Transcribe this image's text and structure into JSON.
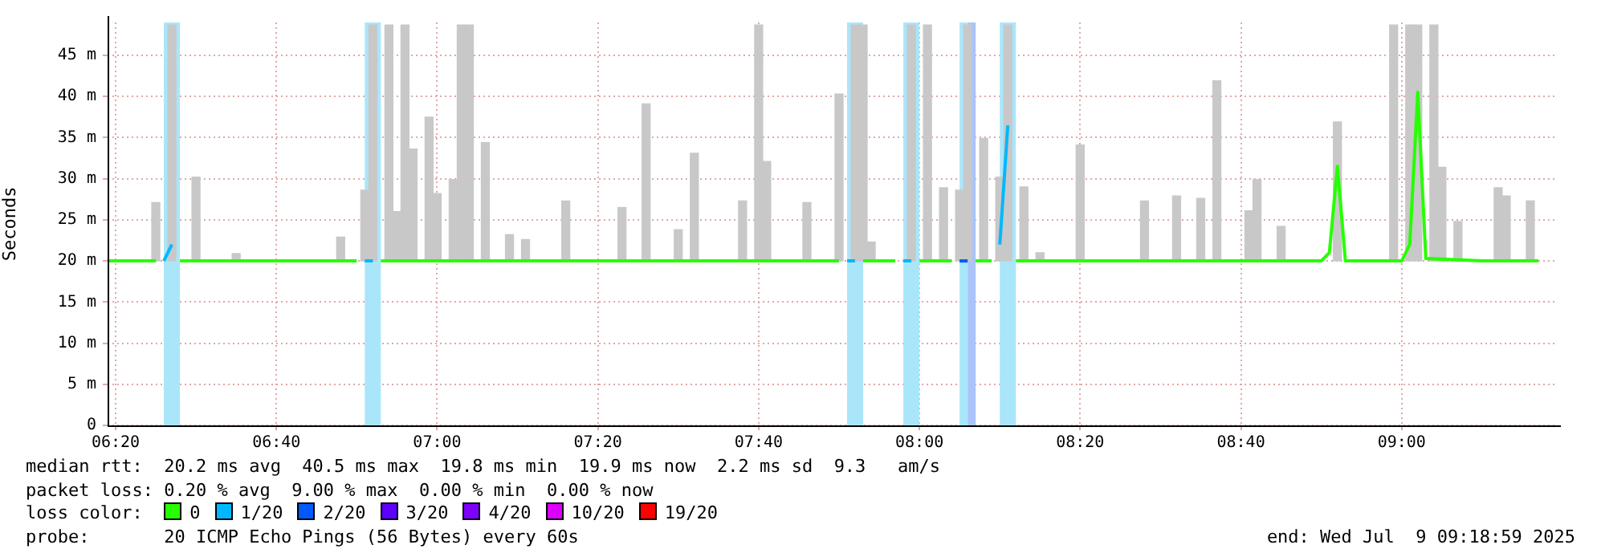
{
  "chart_data": {
    "type": "line",
    "ylabel": "Seconds",
    "legend_title": "loss color:",
    "legend": "bottom",
    "grid": true,
    "xlim": [
      6.3167,
      9.3167
    ],
    "xticks": [
      {
        "value": 6.3333,
        "label": "06:20"
      },
      {
        "value": 6.6667,
        "label": "06:40"
      },
      {
        "value": 7,
        "label": "07:00"
      },
      {
        "value": 7.3333,
        "label": "07:20"
      },
      {
        "value": 7.6667,
        "label": "07:40"
      },
      {
        "value": 8,
        "label": "08:00"
      },
      {
        "value": 8.3333,
        "label": "08:20"
      },
      {
        "value": 8.6667,
        "label": "08:40"
      },
      {
        "value": 9,
        "label": "09:00"
      }
    ],
    "ylim": [
      0,
      49
    ],
    "yticks": [
      0,
      {
        "value": 5,
        "label": "5 m"
      },
      {
        "value": 10,
        "label": "10 m"
      },
      {
        "value": 15,
        "label": "15 m"
      },
      {
        "value": 20,
        "label": "20 m"
      },
      {
        "value": 25,
        "label": "25 m"
      },
      {
        "value": 30,
        "label": "30 m"
      },
      {
        "value": 35,
        "label": "35 m"
      },
      {
        "value": 40,
        "label": "40 m"
      },
      {
        "value": 45,
        "label": "45 m"
      }
    ],
    "bands": [
      {
        "axis": "x",
        "from": 6.4333,
        "to": 6.4667,
        "color": "#aae6fa"
      },
      {
        "axis": "x",
        "from": 6.85,
        "to": 6.8833,
        "color": "#aae6fa"
      },
      {
        "axis": "x",
        "from": 7.85,
        "to": 7.8833,
        "color": "#aae6fa"
      },
      {
        "axis": "x",
        "from": 7.9667,
        "to": 8.0,
        "color": "#aae6fa"
      },
      {
        "axis": "x",
        "from": 8.0833,
        "to": 8.1,
        "color": "#aae6fa"
      },
      {
        "axis": "x",
        "from": 8.1,
        "to": 8.1167,
        "color": "#aac4fa"
      },
      {
        "axis": "x",
        "from": 8.1667,
        "to": 8.2,
        "color": "#aae6fa"
      }
    ],
    "series": [
      {
        "type": "bar",
        "color": "#c8c8c8",
        "x": [
          6.4167,
          6.45,
          6.5,
          6.5833,
          6.8,
          6.85,
          6.8667,
          6.9,
          6.9167,
          6.9333,
          6.95,
          6.9833,
          7.0,
          7.0333,
          7.05,
          7.0667,
          7.1,
          7.15,
          7.1833,
          7.2667,
          7.3833,
          7.4333,
          7.5,
          7.5333,
          7.6333,
          7.6667,
          7.6833,
          7.7667,
          7.8333,
          7.8667,
          7.8833,
          7.9,
          7.9833,
          8.0167,
          8.05,
          8.0833,
          8.1,
          8.1333,
          8.1667,
          8.1833,
          8.2167,
          8.25,
          8.3333,
          8.4667,
          8.5333,
          8.5833,
          8.6167,
          8.6833,
          8.7,
          8.75,
          8.8667,
          8.9833,
          9.0167,
          9.0333,
          9.0667,
          9.0833,
          9.1167,
          9.2,
          9.2167,
          9.2667
        ],
        "base": [
          20,
          20,
          20,
          20,
          20,
          20,
          20,
          20,
          20,
          20,
          20,
          20,
          20,
          20,
          20,
          20,
          20,
          20,
          20,
          20,
          20,
          20,
          20,
          20,
          20,
          20,
          20,
          20,
          20,
          20,
          20,
          20,
          20,
          20,
          20,
          20,
          20,
          20,
          20,
          20,
          20,
          20,
          20,
          20,
          20,
          20,
          20,
          20,
          20,
          20,
          20,
          20,
          20,
          20,
          20,
          20,
          20,
          20,
          20,
          20
        ],
        "values": [
          7.1,
          28.7,
          10.2,
          0.9,
          2.9,
          8.6,
          28.7,
          28.7,
          6,
          28.7,
          13.6,
          17.5,
          8.2,
          9.9,
          28.7,
          28.7,
          14.4,
          3.2,
          2.6,
          7.3,
          6.5,
          19.1,
          3.8,
          13.1,
          7.3,
          28.7,
          12.1,
          7.1,
          20.3,
          28.7,
          28.7,
          2.3,
          28.7,
          28.7,
          8.9,
          8.6,
          28.7,
          14.9,
          10.2,
          28.7,
          9,
          1,
          14.1,
          7.3,
          7.9,
          7.6,
          21.9,
          6.1,
          9.9,
          4.2,
          16.9,
          28.7,
          28.7,
          28.7,
          28.7,
          11.4,
          4.8,
          8.9,
          7.9,
          7.3
        ]
      },
      {
        "name": "0",
        "color": "#26ff00",
        "x": [
          6.3167,
          6.4167,
          6.4333,
          6.4667,
          6.5833,
          6.75,
          6.8333,
          6.85,
          6.8833,
          7.0,
          7.25,
          7.5,
          7.75,
          7.8333,
          7.85,
          7.8833,
          7.95,
          7.9667,
          8.0,
          8.0667,
          8.0833,
          8.1167,
          8.15,
          8.1667,
          8.2,
          8.3333,
          8.5833,
          8.8333,
          8.85,
          8.8667,
          8.8833,
          8.9167,
          9.0,
          9.0167,
          9.0333,
          9.05,
          9.1667,
          9.2833
        ],
        "values": [
          20,
          20,
          null,
          20,
          20,
          20,
          20,
          null,
          20,
          20,
          20,
          20,
          20,
          20,
          null,
          20,
          20,
          null,
          20,
          20,
          null,
          20,
          20,
          null,
          20,
          20,
          20,
          20,
          21,
          31.5,
          20,
          20,
          20,
          22,
          40.5,
          20.3,
          20,
          20
        ]
      },
      {
        "name": "1/20",
        "color": "#00b8ff",
        "x": [
          6.4333,
          6.45,
          6.4667,
          6.85,
          6.8667,
          6.8833,
          7.85,
          7.8667,
          7.8833,
          7.9667,
          7.9833,
          8.0,
          8.1667,
          8.1833
        ],
        "values": [
          20,
          22,
          null,
          20,
          20,
          null,
          20,
          20,
          null,
          20,
          20,
          null,
          22,
          36.5
        ]
      },
      {
        "name": "2/20",
        "color": "#0059ff",
        "x": [
          8.0833,
          8.1
        ],
        "values": [
          20,
          20
        ]
      },
      {
        "name": "3/20",
        "color": "#5e00ff"
      },
      {
        "name": "4/20",
        "color": "#7e00ff"
      },
      {
        "name": "10/20",
        "color": "#dd00ff"
      },
      {
        "name": "19/20",
        "color": "#ff0000"
      }
    ],
    "annotations": [
      "median rtt:  20.2 ms avg  40.5 ms max  19.8 ms min  19.9 ms now  2.2 ms sd  9.3   am/s",
      "packet loss: 0.20 % avg  9.00 % max  0.00 % min  0.00 % now",
      "probe:       20 ICMP Echo Pings (56 Bytes) every 60s",
      "end: Wed Jul  9 09:18:59 2025"
    ]
  }
}
